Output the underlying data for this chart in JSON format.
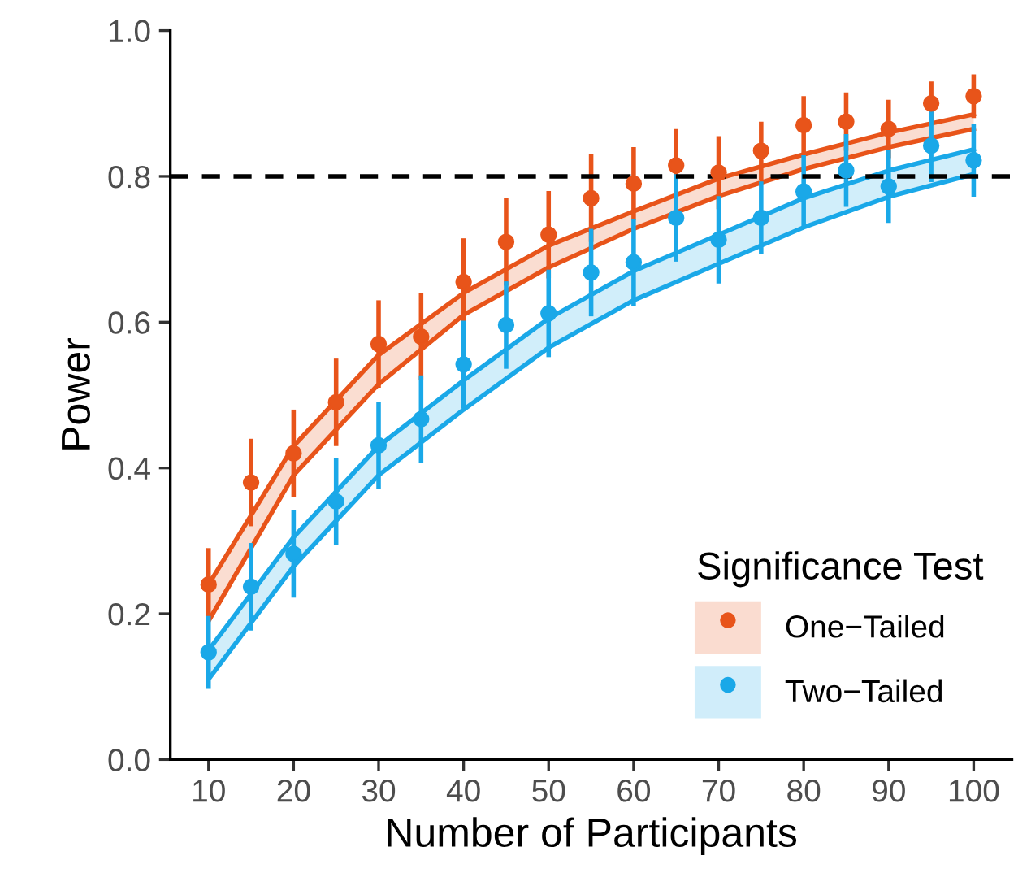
{
  "chart_data": {
    "type": "scatter",
    "xlabel": "Number of Participants",
    "ylabel": "Power",
    "legend_title": "Significance Test",
    "legend": "bottom right",
    "grid": false,
    "marker": "circle",
    "xlim": [
      5.5,
      104.5
    ],
    "ylim": [
      0,
      1.0
    ],
    "xticks": [
      10,
      20,
      30,
      40,
      50,
      60,
      70,
      80,
      90,
      100
    ],
    "yticks": [
      {
        "value": 0,
        "label": "0.0"
      },
      {
        "value": 0.2,
        "label": "0.2"
      },
      {
        "value": 0.4,
        "label": "0.4"
      },
      {
        "value": 0.6,
        "label": "0.6"
      },
      {
        "value": 0.8,
        "label": "0.8"
      },
      {
        "value": 1.0,
        "label": "1.0"
      }
    ],
    "ref_lines": [
      {
        "axis": "y",
        "value": 0.8,
        "color": "#000000",
        "line_style": "dashed"
      }
    ],
    "series": [
      {
        "type": "line",
        "marker": "none",
        "color": "#e8541a",
        "x": [
          10,
          20,
          30,
          40,
          50,
          60,
          70,
          80,
          90,
          100
        ],
        "values": [
          0.24,
          0.43,
          0.555,
          0.64,
          0.705,
          0.752,
          0.797,
          0.83,
          0.86,
          0.885
        ],
        "lower": [
          0.19,
          0.39,
          0.515,
          0.61,
          0.675,
          0.728,
          0.773,
          0.81,
          0.84,
          0.865
        ],
        "upper": [
          0.24,
          0.43,
          0.555,
          0.64,
          0.705,
          0.752,
          0.797,
          0.83,
          0.86,
          0.885
        ]
      },
      {
        "type": "line",
        "marker": "none",
        "color": "#e8541a",
        "x": [
          10,
          20,
          30,
          40,
          50,
          60,
          70,
          80,
          90,
          100
        ],
        "values": [
          0.19,
          0.39,
          0.515,
          0.61,
          0.675,
          0.728,
          0.773,
          0.81,
          0.84,
          0.865
        ]
      },
      {
        "type": "line",
        "marker": "none",
        "color": "#1aa8e8",
        "x": [
          10,
          20,
          30,
          40,
          50,
          60,
          70,
          80,
          90,
          100
        ],
        "values": [
          0.15,
          0.305,
          0.43,
          0.52,
          0.605,
          0.67,
          0.72,
          0.77,
          0.808,
          0.837
        ],
        "lower": [
          0.11,
          0.265,
          0.39,
          0.48,
          0.565,
          0.63,
          0.68,
          0.73,
          0.772,
          0.803
        ],
        "upper": [
          0.15,
          0.305,
          0.43,
          0.52,
          0.605,
          0.67,
          0.72,
          0.77,
          0.808,
          0.837
        ]
      },
      {
        "type": "line",
        "marker": "none",
        "color": "#1aa8e8",
        "x": [
          10,
          20,
          30,
          40,
          50,
          60,
          70,
          80,
          90,
          100
        ],
        "values": [
          0.11,
          0.265,
          0.39,
          0.48,
          0.565,
          0.63,
          0.68,
          0.73,
          0.772,
          0.803
        ]
      },
      {
        "name": "One−Tailed",
        "color": "#e8541a",
        "x": [
          10,
          15,
          20,
          25,
          30,
          35,
          40,
          45,
          50,
          55,
          60,
          65,
          70,
          75,
          80,
          85,
          90,
          95,
          100
        ],
        "values": [
          0.24,
          0.38,
          0.42,
          0.49,
          0.57,
          0.58,
          0.655,
          0.71,
          0.72,
          0.77,
          0.79,
          0.815,
          0.805,
          0.835,
          0.87,
          0.875,
          0.865,
          0.9,
          0.91
        ],
        "errors": [
          0.05,
          0.06,
          0.06,
          0.06,
          0.06,
          0.06,
          0.06,
          0.06,
          0.06,
          0.06,
          0.05,
          0.05,
          0.05,
          0.04,
          0.04,
          0.04,
          0.04,
          0.03,
          0.03
        ]
      },
      {
        "name": "Two−Tailed",
        "color": "#1aa8e8",
        "x": [
          10,
          15,
          20,
          25,
          30,
          35,
          40,
          45,
          50,
          55,
          60,
          65,
          70,
          75,
          80,
          85,
          90,
          95,
          100
        ],
        "values": [
          0.147,
          0.237,
          0.282,
          0.354,
          0.431,
          0.467,
          0.542,
          0.596,
          0.612,
          0.668,
          0.682,
          0.743,
          0.713,
          0.743,
          0.779,
          0.808,
          0.786,
          0.842,
          0.822
        ],
        "errors": [
          0.05,
          0.06,
          0.06,
          0.06,
          0.06,
          0.06,
          0.06,
          0.06,
          0.06,
          0.06,
          0.06,
          0.06,
          0.06,
          0.05,
          0.05,
          0.05,
          0.05,
          0.05,
          0.05
        ]
      }
    ]
  }
}
